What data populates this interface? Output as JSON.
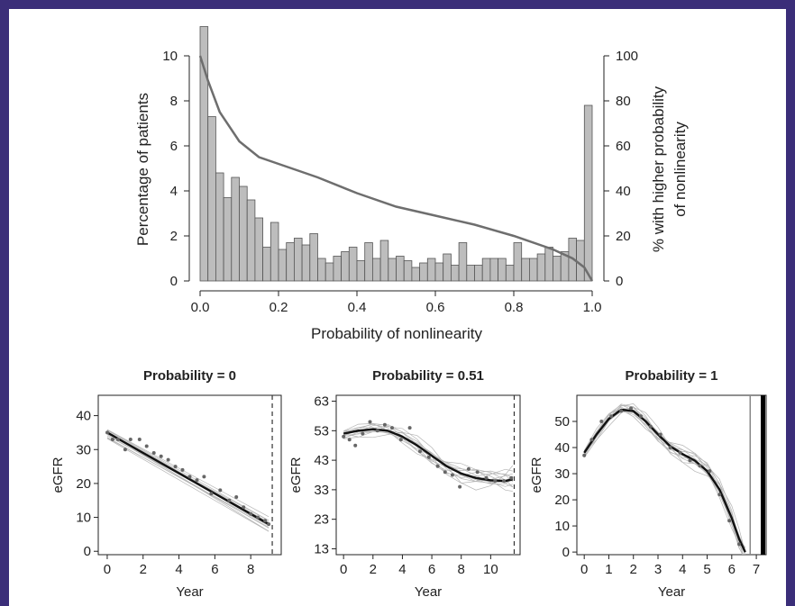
{
  "colors": {
    "frame": "#3b2e79",
    "bar_fill": "#bdbdbd",
    "bar_stroke": "#555555",
    "curve": "#6e6e6e",
    "fit": "#111111",
    "bands": "#b5b5b5"
  },
  "chart_data": [
    {
      "type": "bar",
      "xlabel": "Probability of nonlinearity",
      "ylabel": "Percentage of patients",
      "ylabel_right_line1": "% with higher probability",
      "ylabel_right_line2": "of nonlinearity",
      "xlim": [
        0,
        1
      ],
      "ylim": [
        0,
        10
      ],
      "ylim_right": [
        0,
        100
      ],
      "xticks": [
        "0.0",
        "0.2",
        "0.4",
        "0.6",
        "0.8",
        "1.0"
      ],
      "yticks": [
        "0",
        "2",
        "4",
        "6",
        "8",
        "10"
      ],
      "yticks_right": [
        "0",
        "20",
        "40",
        "60",
        "80",
        "100"
      ],
      "bin_width": 0.02,
      "values": [
        11.3,
        7.3,
        4.8,
        3.7,
        4.6,
        4.2,
        3.6,
        2.8,
        1.5,
        2.6,
        1.4,
        1.7,
        1.9,
        1.6,
        2.1,
        1.0,
        0.8,
        1.1,
        1.3,
        1.5,
        0.9,
        1.7,
        1.0,
        1.8,
        1.0,
        1.1,
        0.9,
        0.6,
        0.8,
        1.0,
        0.8,
        1.2,
        0.7,
        1.7,
        0.7,
        0.7,
        1.0,
        1.0,
        1.0,
        0.7,
        1.7,
        1.0,
        1.0,
        1.2,
        1.5,
        1.1,
        1.3,
        1.9,
        1.8,
        7.8
      ],
      "series": [
        {
          "name": "",
          "x": [
            0.0,
            0.02,
            0.05,
            0.1,
            0.15,
            0.2,
            0.25,
            0.3,
            0.4,
            0.5,
            0.6,
            0.7,
            0.8,
            0.9,
            0.95,
            0.98,
            1.0
          ],
          "y": [
            100,
            89,
            75,
            62,
            55,
            52,
            49,
            46,
            39,
            33,
            29,
            25,
            20,
            14,
            10,
            6,
            0
          ]
        }
      ]
    },
    {
      "type": "scatter",
      "title": "Probability = 0",
      "xlabel": "Year",
      "ylabel": "eGFR",
      "xlim": [
        -0.5,
        9.7
      ],
      "ylim": [
        -1,
        46
      ],
      "xticks": [
        "0",
        "2",
        "4",
        "6",
        "8"
      ],
      "yticks": [
        "0",
        "10",
        "20",
        "30",
        "40"
      ],
      "vline_dashed": 9.2,
      "points_x": [
        0,
        0.3,
        0.6,
        1,
        1.3,
        1.8,
        2.2,
        2.6,
        3,
        3.4,
        3.8,
        4.2,
        4.6,
        5,
        5.4,
        5.8,
        6.3,
        6.8,
        7.2,
        7.6,
        8,
        8.4,
        8.8,
        9
      ],
      "points_y": [
        35,
        33,
        33,
        30,
        33,
        33,
        31,
        29,
        28,
        27,
        25,
        24,
        22,
        21,
        22,
        17,
        18,
        15,
        16,
        13,
        11,
        10,
        9,
        8
      ],
      "fit_x": [
        0,
        9
      ],
      "fit_y": [
        35,
        8
      ]
    },
    {
      "type": "scatter",
      "title": "Probability = 0.51",
      "xlabel": "Year",
      "ylabel": "eGFR",
      "xlim": [
        -0.5,
        12
      ],
      "ylim": [
        11,
        65
      ],
      "xticks": [
        "0",
        "2",
        "4",
        "6",
        "8",
        "10"
      ],
      "yticks": [
        "13",
        "23",
        "33",
        "43",
        "53",
        "63"
      ],
      "vline_dashed": 11.6,
      "points_x": [
        0,
        0.4,
        0.8,
        1.3,
        1.8,
        2.3,
        2.8,
        3.3,
        3.9,
        4.5,
        5.2,
        5.8,
        6.4,
        6.9,
        7.4,
        7.9,
        8.5,
        9.1,
        9.7,
        10.3,
        10.9,
        11.4
      ],
      "points_y": [
        51,
        50,
        48,
        52,
        56,
        53,
        55,
        54,
        50,
        54,
        46,
        44,
        41,
        39,
        38,
        34,
        40,
        39,
        37,
        36,
        36,
        37
      ],
      "fit_x": [
        0,
        1,
        2,
        3,
        4,
        5,
        6,
        7,
        8,
        9,
        10,
        11,
        11.5
      ],
      "fit_y": [
        52,
        53,
        53.5,
        53,
        51,
        48,
        44.5,
        41,
        38.5,
        37,
        36.2,
        36,
        36.5
      ]
    },
    {
      "type": "scatter",
      "title": "Probability = 1",
      "xlabel": "Year",
      "ylabel": "eGFR",
      "xlim": [
        -0.3,
        7.4
      ],
      "ylim": [
        -1,
        60
      ],
      "xticks": [
        "0",
        "1",
        "2",
        "3",
        "4",
        "5",
        "6",
        "7"
      ],
      "yticks": [
        "0",
        "10",
        "20",
        "30",
        "40",
        "50"
      ],
      "vline_solid": 6.75,
      "points_x": [
        0,
        0.3,
        0.7,
        1.1,
        1.5,
        1.9,
        2.3,
        2.7,
        3.1,
        3.5,
        3.9,
        4.3,
        4.7,
        5.1,
        5.5,
        5.9,
        6.3
      ],
      "points_y": [
        37,
        43,
        50,
        52,
        54,
        55,
        52,
        48,
        45,
        40,
        38,
        35,
        33,
        31,
        22,
        12,
        3
      ],
      "fit_x": [
        0,
        0.5,
        1,
        1.5,
        2,
        2.5,
        3,
        3.5,
        4,
        4.5,
        5,
        5.5,
        6,
        6.3,
        6.55
      ],
      "fit_y": [
        38,
        45,
        51,
        54.5,
        54,
        50,
        45,
        40.5,
        37.5,
        35,
        31,
        24,
        13,
        5,
        0
      ]
    }
  ]
}
